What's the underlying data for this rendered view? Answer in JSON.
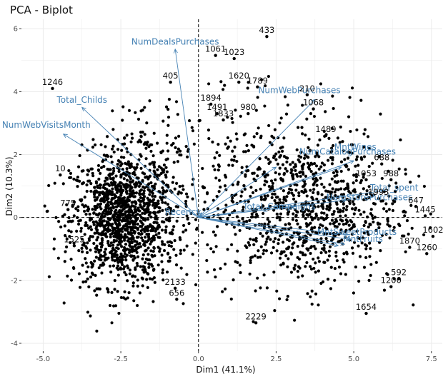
{
  "chart_data": {
    "type": "scatter",
    "title": "PCA - Biplot",
    "xlabel": "Dim1 (41.1%)",
    "ylabel": "Dim2 (10.3%)",
    "xlim": [
      -5.7,
      7.85
    ],
    "ylim": [
      -4.25,
      6.3
    ],
    "x_ticks": [
      -5.0,
      -2.5,
      0.0,
      2.5,
      5.0,
      7.5
    ],
    "x_tick_labels": [
      "-5.0",
      "-2.5",
      "0.0",
      "2.5",
      "5.0",
      "7.5"
    ],
    "y_ticks": [
      -4,
      -2,
      0,
      2,
      4,
      6
    ],
    "y_tick_labels": [
      "-4",
      "-2",
      "0",
      "2",
      "4",
      "6"
    ],
    "grid": true,
    "reference_lines": {
      "x": 0,
      "y": 0,
      "style": "dashed"
    },
    "colors": {
      "points": "#000000",
      "vectors": "#4682b4",
      "grid": "#ebebeb",
      "text": "#1a1a1a"
    },
    "labeled_points": [
      {
        "label": "433",
        "x": 2.2,
        "y": 5.75
      },
      {
        "label": "1246",
        "x": -4.7,
        "y": 4.1
      },
      {
        "label": "1620",
        "x": 1.3,
        "y": 4.3
      },
      {
        "label": "1789",
        "x": 1.9,
        "y": 4.15
      },
      {
        "label": "1894",
        "x": 0.4,
        "y": 3.6
      },
      {
        "label": "1491",
        "x": 0.6,
        "y": 3.3
      },
      {
        "label": "980",
        "x": 1.6,
        "y": 3.3
      },
      {
        "label": "1068",
        "x": 3.7,
        "y": 3.45
      },
      {
        "label": "1489",
        "x": 4.1,
        "y": 2.6
      },
      {
        "label": "688",
        "x": 5.9,
        "y": 1.7
      },
      {
        "label": "1053",
        "x": 5.4,
        "y": 1.2
      },
      {
        "label": "988",
        "x": 6.2,
        "y": 1.2
      },
      {
        "label": "647",
        "x": 7.0,
        "y": 0.35
      },
      {
        "label": "1445",
        "x": 7.3,
        "y": 0.05
      },
      {
        "label": "1602",
        "x": 7.55,
        "y": -0.6
      },
      {
        "label": "1260",
        "x": 7.35,
        "y": -1.15
      },
      {
        "label": "592",
        "x": 6.45,
        "y": -1.95
      },
      {
        "label": "1200",
        "x": 6.2,
        "y": -2.2
      },
      {
        "label": "1654",
        "x": 5.4,
        "y": -3.05
      },
      {
        "label": "2229",
        "x": 1.85,
        "y": -3.35
      },
      {
        "label": "2133",
        "x": -0.75,
        "y": -2.25
      },
      {
        "label": "656",
        "x": -0.7,
        "y": -2.6
      },
      {
        "label": "10",
        "x": -4.45,
        "y": 1.35
      },
      {
        "label": "775",
        "x": -4.2,
        "y": 0.25
      },
      {
        "label": "1525",
        "x": -4.0,
        "y": -0.9
      },
      {
        "label": "405",
        "x": -0.9,
        "y": 4.3
      },
      {
        "label": "1023",
        "x": 1.15,
        "y": 5.05
      },
      {
        "label": "1061",
        "x": 0.55,
        "y": 5.15
      },
      {
        "label": "1833",
        "x": 0.8,
        "y": 3.1
      },
      {
        "label": "210",
        "x": 3.5,
        "y": 3.9
      },
      {
        "label": "1993",
        "x": 5.8,
        "y": 0.6
      },
      {
        "label": "1870",
        "x": 6.8,
        "y": -0.95
      }
    ],
    "vectors": [
      {
        "name": "NumDealsPurchases",
        "x": -0.75,
        "y": 5.35
      },
      {
        "name": "NumWebPurchases",
        "x": 3.75,
        "y": 3.75
      },
      {
        "name": "Total_Childs",
        "x": -3.75,
        "y": 3.5
      },
      {
        "name": "NumWebVisitsMonth",
        "x": -4.35,
        "y": 2.65
      },
      {
        "name": "MntWines",
        "x": 5.0,
        "y": 1.8
      },
      {
        "name": "NumCatalogPurchases",
        "x": 4.6,
        "y": 1.6
      },
      {
        "name": "Income",
        "x": 2.5,
        "y": 1.6
      },
      {
        "name": "Total_spent",
        "x": 5.95,
        "y": 0.85
      },
      {
        "name": "NumStorePurchases",
        "x": 4.75,
        "y": 0.55
      },
      {
        "name": "Total_Campaigns",
        "x": 3.1,
        "y": 0.35
      },
      {
        "name": "Recency",
        "x": 0.1,
        "y": 0.15
      },
      {
        "name": "MntMeatProducts",
        "x": 4.8,
        "y": -0.55
      },
      {
        "name": "MntFishProducts",
        "x": 4.9,
        "y": -0.7
      },
      {
        "name": "MntSweetProducts",
        "x": 4.7,
        "y": -0.85
      },
      {
        "name": "MntFruits",
        "x": 4.5,
        "y": -0.9
      }
    ],
    "vector_labels": [
      {
        "text": "NumDealsPurchases",
        "x": -0.75,
        "y": 5.5
      },
      {
        "text": "NumWebPurchases",
        "x": 3.25,
        "y": 3.95
      },
      {
        "text": "Total_Childs",
        "x": -3.75,
        "y": 3.65
      },
      {
        "text": "NumWebVisitsMonth",
        "x": -4.9,
        "y": 2.85
      },
      {
        "text": "MntWines",
        "x": 5.05,
        "y": 2.15
      },
      {
        "text": "NumCatalogPurchases",
        "x": 4.8,
        "y": 2.0
      },
      {
        "text": "Total_spent",
        "x": 6.3,
        "y": 0.85
      },
      {
        "text": "NumStorePurchases",
        "x": 5.5,
        "y": 0.55
      },
      {
        "text": "Total_Campaigns",
        "x": 2.6,
        "y": 0.25
      },
      {
        "text": "Recency",
        "x": -0.5,
        "y": 0.08
      },
      {
        "text": "MntSweetProducts",
        "x": 5.1,
        "y": -0.55
      },
      {
        "text": "MntFruits",
        "x": 5.3,
        "y": -0.78
      }
    ]
  }
}
